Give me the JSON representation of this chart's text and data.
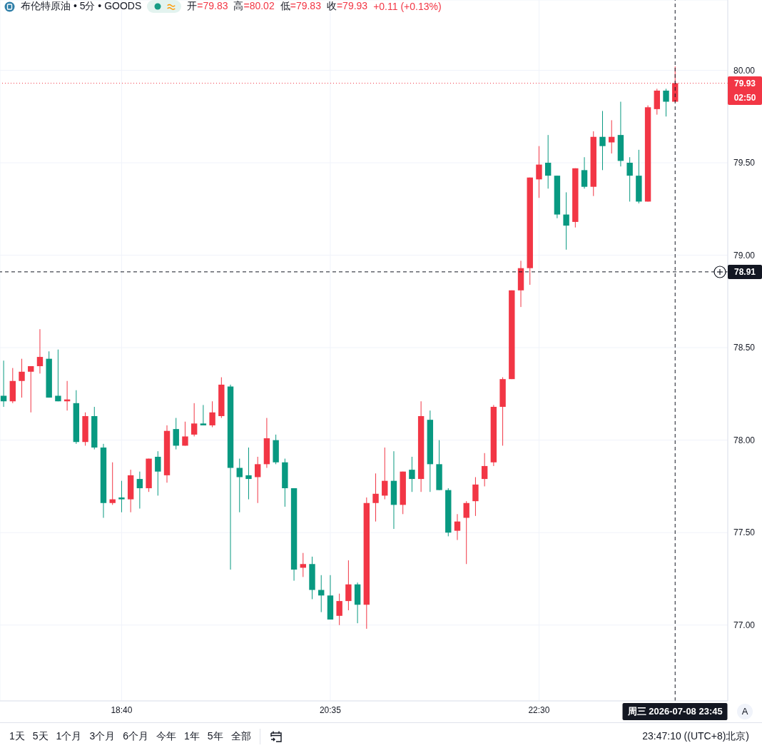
{
  "chart_data": {
    "type": "candlestick",
    "title": "布伦特原油 • 5分 • GOODS",
    "x": [
      "2026-07-08T17:35",
      "2026-07-08T17:40",
      "2026-07-08T17:45",
      "2026-07-08T17:50",
      "2026-07-08T17:55",
      "2026-07-08T18:00",
      "2026-07-08T18:05",
      "2026-07-08T18:10",
      "2026-07-08T18:15",
      "2026-07-08T18:20",
      "2026-07-08T18:25",
      "2026-07-08T18:30",
      "2026-07-08T18:35",
      "2026-07-08T18:40",
      "2026-07-08T18:45",
      "2026-07-08T18:50",
      "2026-07-08T18:55",
      "2026-07-08T19:00",
      "2026-07-08T19:05",
      "2026-07-08T19:10",
      "2026-07-08T19:15",
      "2026-07-08T19:20",
      "2026-07-08T19:25",
      "2026-07-08T19:30",
      "2026-07-08T19:35",
      "2026-07-08T19:40",
      "2026-07-08T19:45",
      "2026-07-08T19:50",
      "2026-07-08T19:55",
      "2026-07-08T20:00",
      "2026-07-08T20:05",
      "2026-07-08T20:10",
      "2026-07-08T20:15",
      "2026-07-08T20:20",
      "2026-07-08T20:25",
      "2026-07-08T20:30",
      "2026-07-08T20:35",
      "2026-07-08T20:40",
      "2026-07-08T20:45",
      "2026-07-08T20:50",
      "2026-07-08T20:55",
      "2026-07-08T21:00",
      "2026-07-08T21:05",
      "2026-07-08T21:10",
      "2026-07-08T21:15",
      "2026-07-08T21:20",
      "2026-07-08T21:25",
      "2026-07-08T21:30",
      "2026-07-08T21:35",
      "2026-07-08T21:40",
      "2026-07-08T21:45",
      "2026-07-08T21:50",
      "2026-07-08T21:55",
      "2026-07-08T22:00",
      "2026-07-08T22:05",
      "2026-07-08T22:10",
      "2026-07-08T22:15",
      "2026-07-08T22:20",
      "2026-07-08T22:25",
      "2026-07-08T22:30",
      "2026-07-08T22:35",
      "2026-07-08T22:40",
      "2026-07-08T22:45",
      "2026-07-08T22:50",
      "2026-07-08T22:55",
      "2026-07-08T23:00",
      "2026-07-08T23:05",
      "2026-07-08T23:10",
      "2026-07-08T23:15",
      "2026-07-08T23:20",
      "2026-07-08T23:25",
      "2026-07-08T23:30",
      "2026-07-08T23:35",
      "2026-07-08T23:40",
      "2026-07-08T23:45"
    ],
    "ohlc": [
      [
        78.24,
        78.43,
        78.18,
        78.21
      ],
      [
        78.21,
        78.39,
        78.2,
        78.32
      ],
      [
        78.32,
        78.44,
        78.23,
        78.37
      ],
      [
        78.37,
        78.4,
        78.15,
        78.4
      ],
      [
        78.4,
        78.6,
        78.36,
        78.45
      ],
      [
        78.44,
        78.48,
        78.23,
        78.23
      ],
      [
        78.24,
        78.49,
        78.21,
        78.21
      ],
      [
        78.21,
        78.32,
        78.16,
        78.22
      ],
      [
        78.2,
        78.27,
        77.98,
        77.99
      ],
      [
        77.99,
        78.15,
        77.97,
        78.13
      ],
      [
        78.13,
        78.18,
        77.95,
        77.96
      ],
      [
        77.96,
        77.98,
        77.58,
        77.66
      ],
      [
        77.66,
        77.88,
        77.65,
        77.68
      ],
      [
        77.69,
        77.78,
        77.61,
        77.68
      ],
      [
        77.68,
        77.84,
        77.61,
        77.81
      ],
      [
        77.79,
        77.83,
        77.63,
        77.74
      ],
      [
        77.74,
        77.9,
        77.72,
        77.9
      ],
      [
        77.91,
        77.94,
        77.7,
        77.83
      ],
      [
        77.81,
        78.08,
        77.77,
        78.05
      ],
      [
        78.06,
        78.12,
        77.95,
        77.97
      ],
      [
        77.97,
        78.1,
        77.97,
        78.02
      ],
      [
        78.03,
        78.2,
        78.02,
        78.09
      ],
      [
        78.09,
        78.19,
        78.08,
        78.08
      ],
      [
        78.08,
        78.21,
        78.07,
        78.15
      ],
      [
        78.13,
        78.34,
        78.12,
        78.3
      ],
      [
        78.29,
        78.3,
        77.3,
        77.85
      ],
      [
        77.85,
        77.9,
        77.61,
        77.8
      ],
      [
        77.81,
        77.96,
        77.68,
        77.79
      ],
      [
        77.8,
        77.91,
        77.66,
        77.87
      ],
      [
        77.87,
        78.12,
        77.85,
        78.01
      ],
      [
        78.0,
        78.03,
        77.87,
        77.88
      ],
      [
        77.88,
        77.9,
        77.64,
        77.74
      ],
      [
        77.74,
        77.74,
        77.24,
        77.3
      ],
      [
        77.31,
        77.39,
        77.26,
        77.33
      ],
      [
        77.33,
        77.37,
        77.14,
        77.19
      ],
      [
        77.19,
        77.27,
        77.07,
        77.16
      ],
      [
        77.16,
        77.27,
        77.03,
        77.03
      ],
      [
        77.05,
        77.17,
        77.0,
        77.13
      ],
      [
        77.13,
        77.35,
        77.08,
        77.22
      ],
      [
        77.22,
        77.23,
        77.01,
        77.11
      ],
      [
        77.11,
        77.69,
        76.98,
        77.66
      ],
      [
        77.66,
        77.82,
        77.56,
        77.71
      ],
      [
        77.7,
        77.96,
        77.68,
        77.78
      ],
      [
        77.78,
        77.94,
        77.52,
        77.65
      ],
      [
        77.65,
        77.83,
        77.6,
        77.83
      ],
      [
        77.84,
        77.91,
        77.72,
        77.79
      ],
      [
        77.79,
        78.21,
        77.72,
        78.13
      ],
      [
        78.11,
        78.16,
        77.72,
        77.87
      ],
      [
        77.87,
        78.0,
        77.73,
        77.73
      ],
      [
        77.73,
        77.74,
        77.48,
        77.5
      ],
      [
        77.51,
        77.6,
        77.46,
        77.56
      ],
      [
        77.58,
        77.67,
        77.33,
        77.66
      ],
      [
        77.67,
        77.8,
        77.59,
        77.76
      ],
      [
        77.79,
        77.93,
        77.75,
        77.86
      ],
      [
        77.88,
        78.19,
        77.86,
        78.18
      ],
      [
        78.18,
        78.34,
        77.97,
        78.33
      ],
      [
        78.33,
        78.81,
        78.33,
        78.81
      ],
      [
        78.81,
        78.97,
        78.72,
        78.93
      ],
      [
        78.93,
        79.42,
        78.84,
        79.42
      ],
      [
        79.41,
        79.59,
        79.31,
        79.49
      ],
      [
        79.5,
        79.65,
        79.36,
        79.43
      ],
      [
        79.43,
        79.43,
        79.2,
        79.22
      ],
      [
        79.22,
        79.34,
        79.03,
        79.16
      ],
      [
        79.18,
        79.47,
        79.15,
        79.47
      ],
      [
        79.46,
        79.53,
        79.36,
        79.37
      ],
      [
        79.37,
        79.67,
        79.32,
        79.64
      ],
      [
        79.64,
        79.78,
        79.46,
        79.59
      ],
      [
        79.61,
        79.73,
        79.55,
        79.64
      ],
      [
        79.65,
        79.83,
        79.48,
        79.51
      ],
      [
        79.5,
        79.53,
        79.29,
        79.43
      ],
      [
        79.43,
        79.57,
        79.28,
        79.29
      ],
      [
        79.29,
        79.81,
        79.29,
        79.8
      ],
      [
        79.79,
        79.9,
        79.76,
        79.89
      ],
      [
        79.89,
        79.9,
        79.75,
        79.83
      ],
      [
        79.83,
        80.02,
        79.83,
        79.93
      ]
    ],
    "colors": [
      "#089981",
      "#f23645",
      "#f23645",
      "#f23645",
      "#f23645",
      "#089981",
      "#089981",
      "#f23645",
      "#089981",
      "#f23645",
      "#089981",
      "#089981",
      "#f23645",
      "#089981",
      "#f23645",
      "#089981",
      "#f23645",
      "#089981",
      "#f23645",
      "#089981",
      "#f23645",
      "#f23645",
      "#089981",
      "#f23645",
      "#f23645",
      "#089981",
      "#089981",
      "#089981",
      "#f23645",
      "#f23645",
      "#089981",
      "#089981",
      "#089981",
      "#f23645",
      "#089981",
      "#089981",
      "#089981",
      "#f23645",
      "#f23645",
      "#089981",
      "#f23645",
      "#f23645",
      "#f23645",
      "#089981",
      "#f23645",
      "#089981",
      "#f23645",
      "#089981",
      "#089981",
      "#089981",
      "#f23645",
      "#f23645",
      "#f23645",
      "#f23645",
      "#f23645",
      "#f23645",
      "#f23645",
      "#f23645",
      "#f23645",
      "#f23645",
      "#089981",
      "#089981",
      "#089981",
      "#f23645",
      "#089981",
      "#f23645",
      "#089981",
      "#f23645",
      "#089981",
      "#089981",
      "#089981",
      "#f23645",
      "#f23645",
      "#089981",
      "#f23645"
    ],
    "xlim": [
      "2026-07-08T17:33",
      "2026-07-09T00:14"
    ],
    "xticks": [
      {
        "value": "2026-07-08T18:40",
        "label": "18:40"
      },
      {
        "value": "2026-07-08T20:35",
        "label": "20:35"
      },
      {
        "value": "2026-07-08T22:30",
        "label": "22:30"
      }
    ],
    "ylim": [
      76.59,
      80.38
    ],
    "yticks": [
      {
        "value": 77,
        "label": "77.00"
      },
      {
        "value": 77.5,
        "label": "77.50"
      },
      {
        "value": 78,
        "label": "78.00"
      },
      {
        "value": 78.5,
        "label": "78.50"
      },
      {
        "value": 79,
        "label": "79.00"
      },
      {
        "value": 79.5,
        "label": "79.50"
      },
      {
        "value": 80,
        "label": "80.00"
      }
    ],
    "grid": true,
    "ref_lines": [
      {
        "axis": "y",
        "value": 79.93,
        "label": "79.93",
        "color": "#f23645",
        "line_style": "dotted"
      },
      {
        "axis": "y",
        "value": 78.91,
        "label": "78.91",
        "color": "#131722",
        "line_style": "dashed"
      },
      {
        "axis": "x",
        "value": "2026-07-08T23:45",
        "label": "周三 2026-07-08 23:45",
        "color": "#131722",
        "line_style": "dashed"
      }
    ],
    "annotations": [
      "开=79.83",
      "高=80.02",
      "低=79.83",
      "收=79.93",
      "+0.11 (+0.13%)",
      "02:50",
      "1天",
      "5天",
      "1个月",
      "3个月",
      "6个月",
      "今年",
      "1年",
      "5年",
      "全部",
      "23:47:10 ((UTC+8)北京)",
      "A"
    ]
  }
}
